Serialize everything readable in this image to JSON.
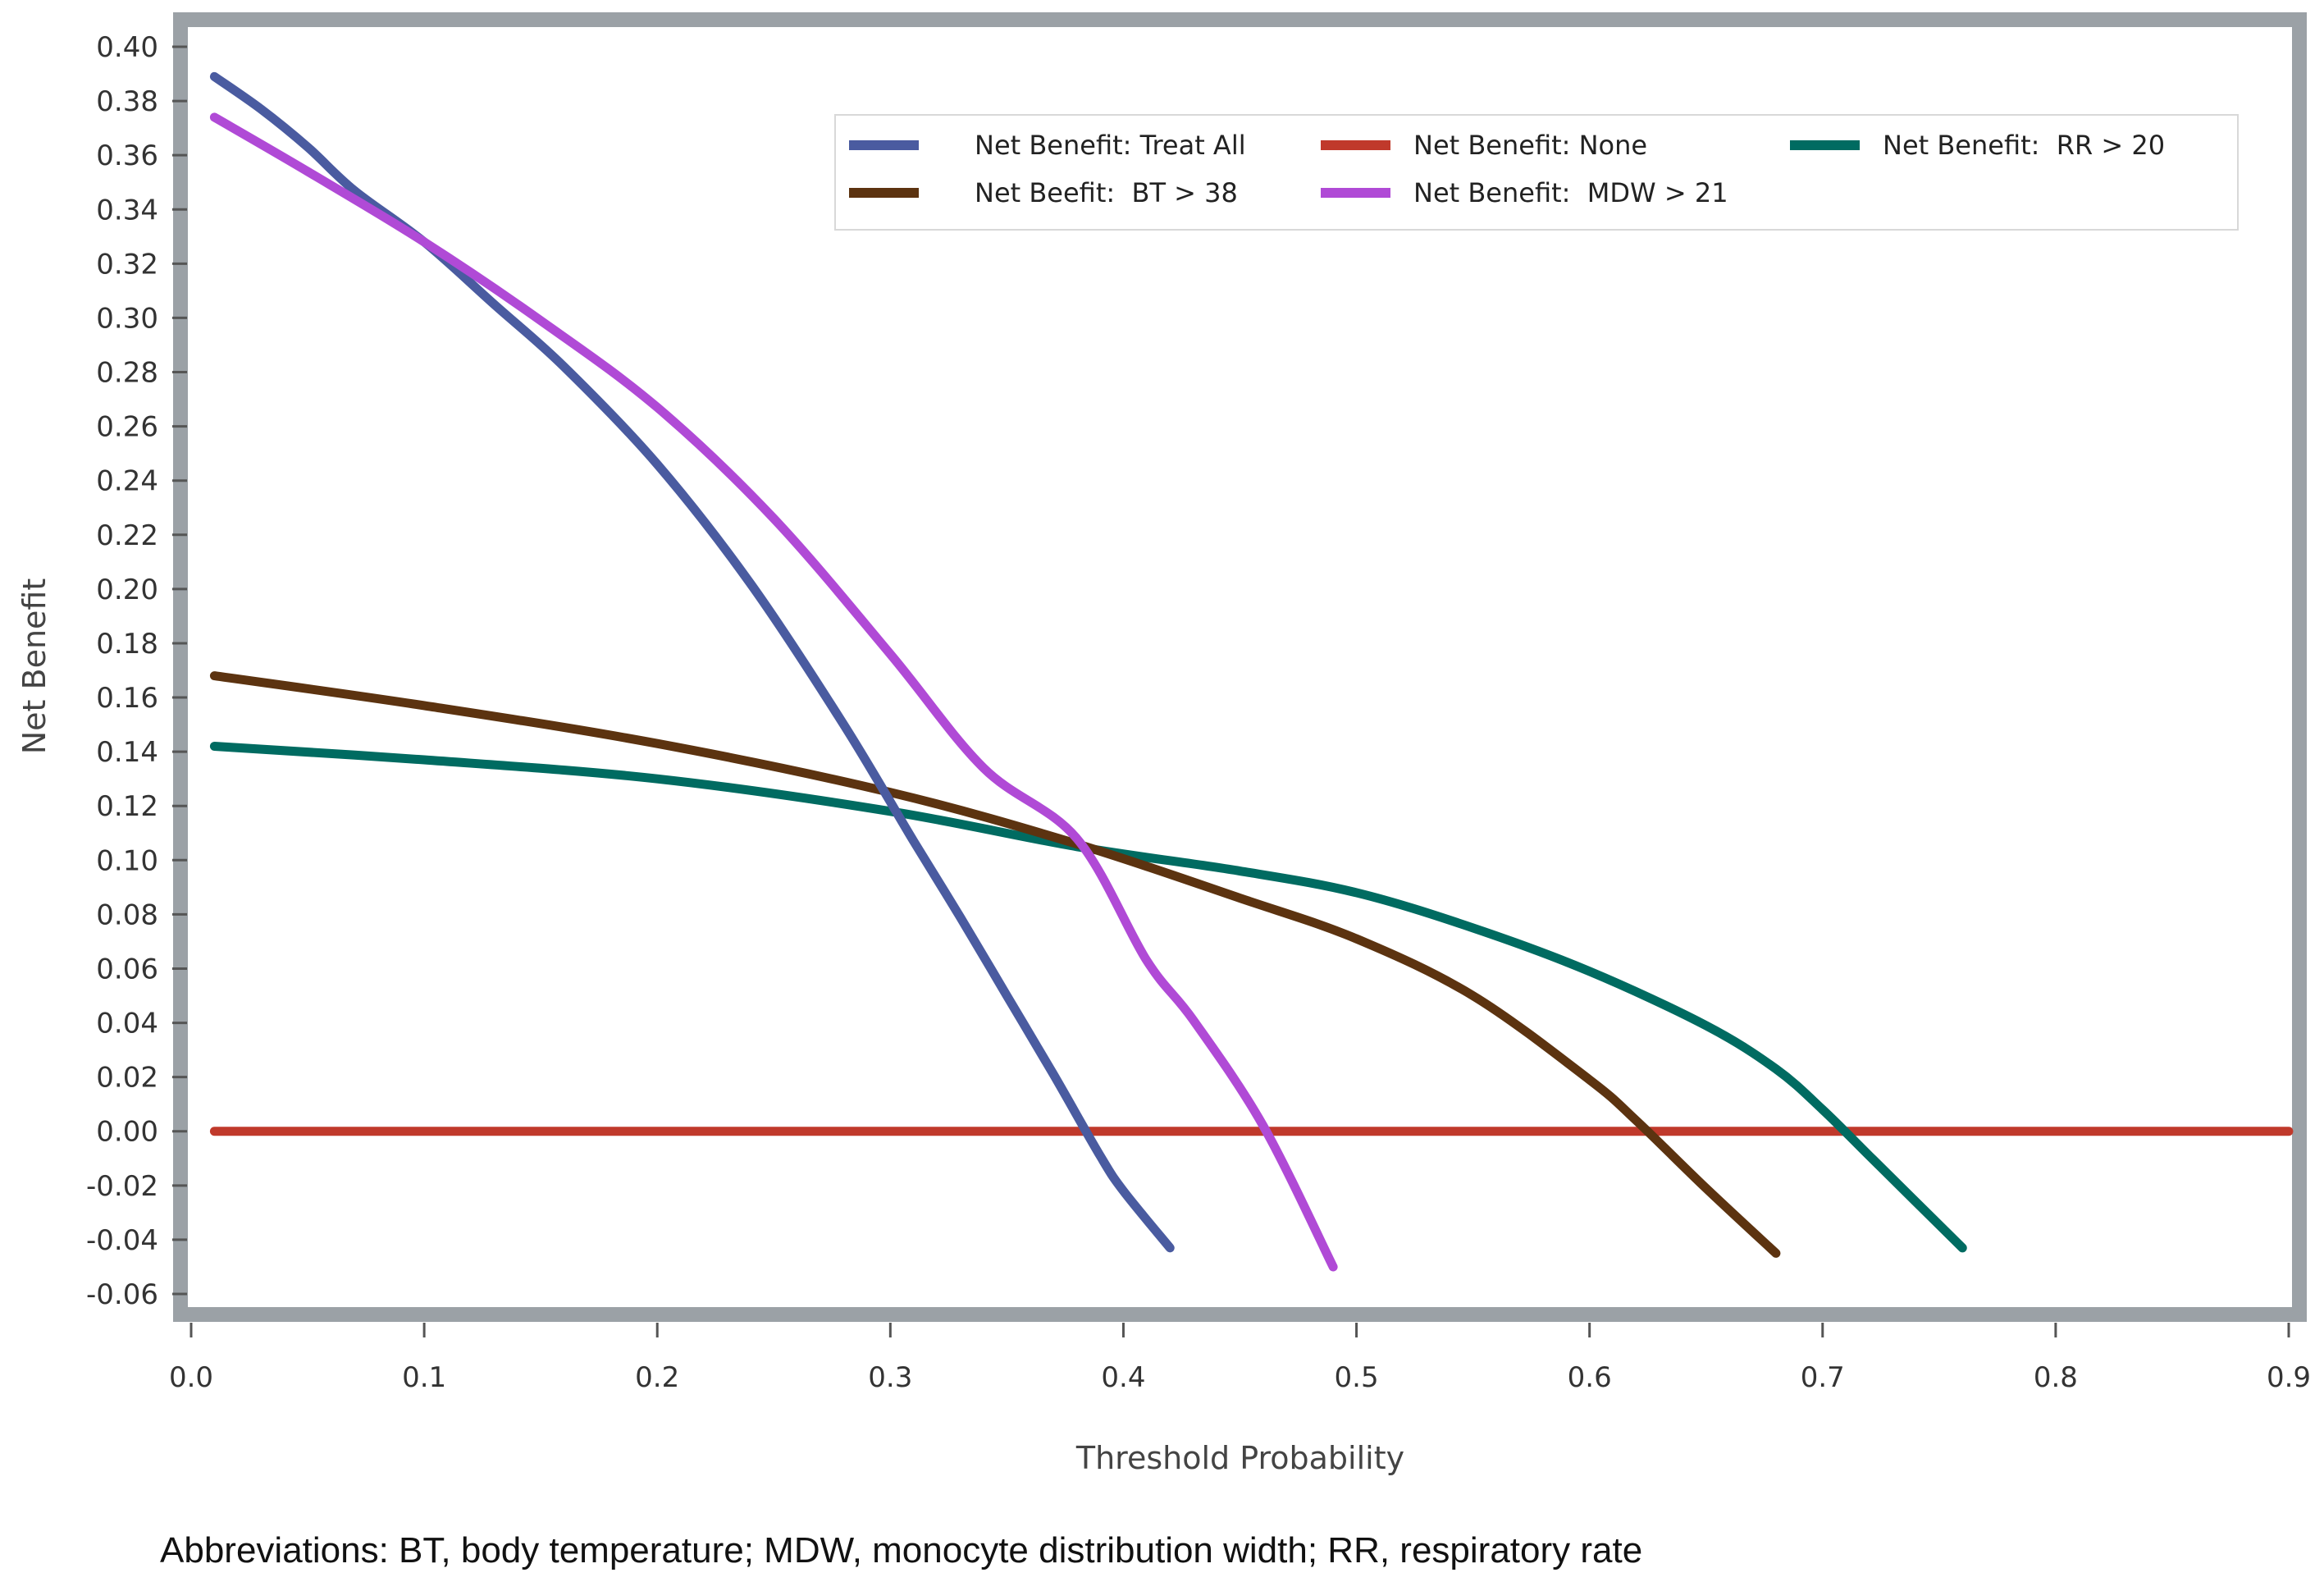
{
  "chart_data": {
    "type": "line",
    "title": "",
    "xlabel": "Threshold Probability",
    "ylabel": "Net Benefit",
    "xlim": [
      0,
      0.9
    ],
    "ylim": [
      -0.06,
      0.4
    ],
    "x_ticks": [
      "0.0",
      "0.1",
      "0.2",
      "0.3",
      "0.4",
      "0.5",
      "0.6",
      "0.7",
      "0.8",
      "0.9"
    ],
    "y_ticks": [
      "0.40",
      "0.38",
      "0.36",
      "0.34",
      "0.32",
      "0.30",
      "0.28",
      "0.26",
      "0.24",
      "0.22",
      "0.20",
      "0.18",
      "0.16",
      "0.14",
      "0.12",
      "0.10",
      "0.08",
      "0.06",
      "0.04",
      "0.02",
      "0.00",
      "-0.02",
      "-0.04",
      "-0.06"
    ],
    "grid": false,
    "legend_position": "top-right",
    "series": [
      {
        "name": "Net Benefit: Treat All",
        "color": "#4a5ba0",
        "x": [
          0.01,
          0.03,
          0.05,
          0.07,
          0.1,
          0.13,
          0.16,
          0.2,
          0.24,
          0.28,
          0.31,
          0.33,
          0.35,
          0.37,
          0.39,
          0.4,
          0.42
        ],
        "y": [
          0.389,
          0.377,
          0.363,
          0.347,
          0.328,
          0.305,
          0.282,
          0.246,
          0.202,
          0.15,
          0.107,
          0.079,
          0.05,
          0.021,
          -0.009,
          -0.022,
          -0.043
        ]
      },
      {
        "name": "Net Benefit: None",
        "color": "#c0392b",
        "x": [
          0.01,
          0.9
        ],
        "y": [
          0.0,
          0.0
        ]
      },
      {
        "name": "Net Benefit:  RR > 20",
        "color": "#006b61",
        "x": [
          0.01,
          0.1,
          0.2,
          0.3,
          0.38,
          0.45,
          0.5,
          0.55,
          0.6,
          0.65,
          0.68,
          0.7,
          0.72,
          0.74,
          0.76
        ],
        "y": [
          0.142,
          0.137,
          0.13,
          0.118,
          0.105,
          0.096,
          0.088,
          0.075,
          0.059,
          0.039,
          0.023,
          0.008,
          -0.009,
          -0.026,
          -0.043
        ]
      },
      {
        "name": "Net Beefit:  BT > 38",
        "color": "#5c3310",
        "x": [
          0.01,
          0.1,
          0.2,
          0.3,
          0.38,
          0.45,
          0.5,
          0.55,
          0.6,
          0.62,
          0.65,
          0.68
        ],
        "y": [
          0.168,
          0.157,
          0.143,
          0.125,
          0.106,
          0.086,
          0.071,
          0.05,
          0.019,
          0.004,
          -0.021,
          -0.045
        ]
      },
      {
        "name": "Net Benefit:  MDW > 21",
        "color": "#b04ad6",
        "x": [
          0.01,
          0.05,
          0.1,
          0.15,
          0.2,
          0.25,
          0.3,
          0.34,
          0.38,
          0.41,
          0.43,
          0.46,
          0.49
        ],
        "y": [
          0.374,
          0.354,
          0.328,
          0.299,
          0.267,
          0.226,
          0.176,
          0.134,
          0.108,
          0.063,
          0.041,
          0.002,
          -0.05
        ]
      }
    ]
  },
  "footnote": "Abbreviations: BT, body temperature; MDW, monocyte distribution width; RR, respiratory rate"
}
